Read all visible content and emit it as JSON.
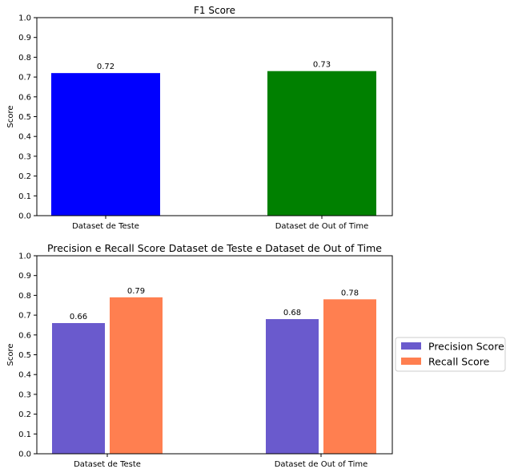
{
  "chart_data": [
    {
      "type": "bar",
      "title": "F1 Score",
      "xlabel": "",
      "ylabel": "Score",
      "ylim": [
        0,
        1.0
      ],
      "yticks": [
        "0.0",
        "0.1",
        "0.2",
        "0.3",
        "0.4",
        "0.5",
        "0.6",
        "0.7",
        "0.8",
        "0.9",
        "1.0"
      ],
      "categories": [
        "Dataset de Teste",
        "Dataset de Out of Time"
      ],
      "series": [
        {
          "values": [
            0.72,
            0.73
          ],
          "data_labels": [
            "0.72",
            "0.73"
          ],
          "colors": [
            "#0000ff",
            "#008000"
          ]
        }
      ],
      "grid": false,
      "legend": null
    },
    {
      "type": "bar",
      "title": "Precision e Recall Score Dataset de Teste e Dataset de Out of Time",
      "xlabel": "",
      "ylabel": "Score",
      "ylim": [
        0,
        1.0
      ],
      "yticks": [
        "0.0",
        "0.1",
        "0.2",
        "0.3",
        "0.4",
        "0.5",
        "0.6",
        "0.7",
        "0.8",
        "0.9",
        "1.0"
      ],
      "categories": [
        "Dataset de Teste",
        "Dataset de Out of Time"
      ],
      "series": [
        {
          "name": "Precision Score",
          "values": [
            0.66,
            0.68
          ],
          "data_labels": [
            "0.66",
            "0.68"
          ],
          "color": "#6a5acd"
        },
        {
          "name": "Recall Score",
          "values": [
            0.79,
            0.78
          ],
          "data_labels": [
            "0.79",
            "0.78"
          ],
          "color": "#ff7f50"
        }
      ],
      "grid": false,
      "legend": "right"
    }
  ]
}
